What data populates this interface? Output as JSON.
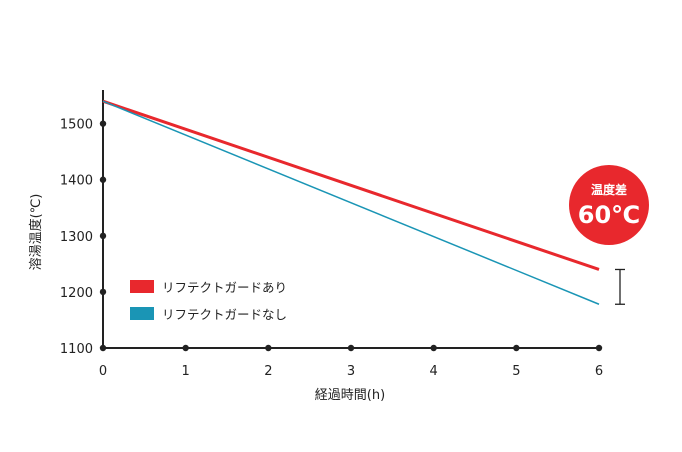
{
  "chart_data": {
    "type": "line",
    "xlabel": "経過時間(h)",
    "ylabel": "溶湯温度(℃)",
    "x": [
      0,
      6
    ],
    "xlim": [
      0,
      6
    ],
    "ylim": [
      1100,
      1560
    ],
    "xticks": [
      "0",
      "1",
      "2",
      "3",
      "4",
      "5",
      "6"
    ],
    "yticks": [
      "1100",
      "1200",
      "1300",
      "1400",
      "1500"
    ],
    "grid": false,
    "legend_position": "lower-left",
    "series": [
      {
        "name": "リフテクトガードあり",
        "values": [
          1540,
          1240
        ],
        "color": "#e8282d"
      },
      {
        "name": "リフテクトガードなし",
        "values": [
          1540,
          1178
        ],
        "color": "#1a95b5"
      }
    ],
    "annotation": {
      "title": "温度差",
      "value": "60℃",
      "color": "#e8282d"
    }
  }
}
